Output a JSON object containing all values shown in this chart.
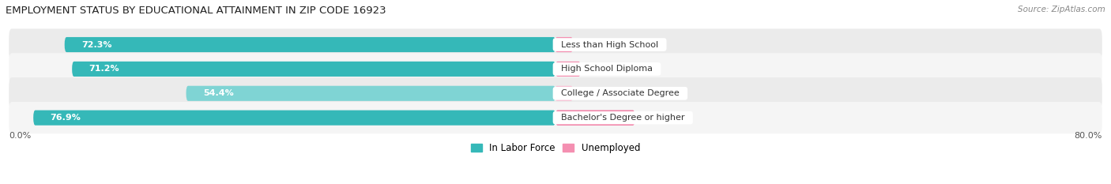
{
  "title": "EMPLOYMENT STATUS BY EDUCATIONAL ATTAINMENT IN ZIP CODE 16923",
  "source": "Source: ZipAtlas.com",
  "categories": [
    "Less than High School",
    "High School Diploma",
    "College / Associate Degree",
    "Bachelor's Degree or higher"
  ],
  "labor_force": [
    72.3,
    71.2,
    54.4,
    76.9
  ],
  "unemployed": [
    0.0,
    3.7,
    0.0,
    11.7
  ],
  "lf_colors": [
    "#35b8b8",
    "#35b8b8",
    "#7fd4d4",
    "#35b8b8"
  ],
  "unemployed_colors": [
    "#f48fb1",
    "#f48fb1",
    "#f9c0d4",
    "#f06292"
  ],
  "row_bg_even": "#ebebeb",
  "row_bg_odd": "#f5f5f5",
  "x_left_label": "0.0%",
  "x_right_label": "80.0%",
  "x_max": 80.0,
  "background_color": "#ffffff",
  "title_fontsize": 9.5,
  "bar_label_fontsize": 8,
  "cat_label_fontsize": 8,
  "pct_label_fontsize": 8
}
